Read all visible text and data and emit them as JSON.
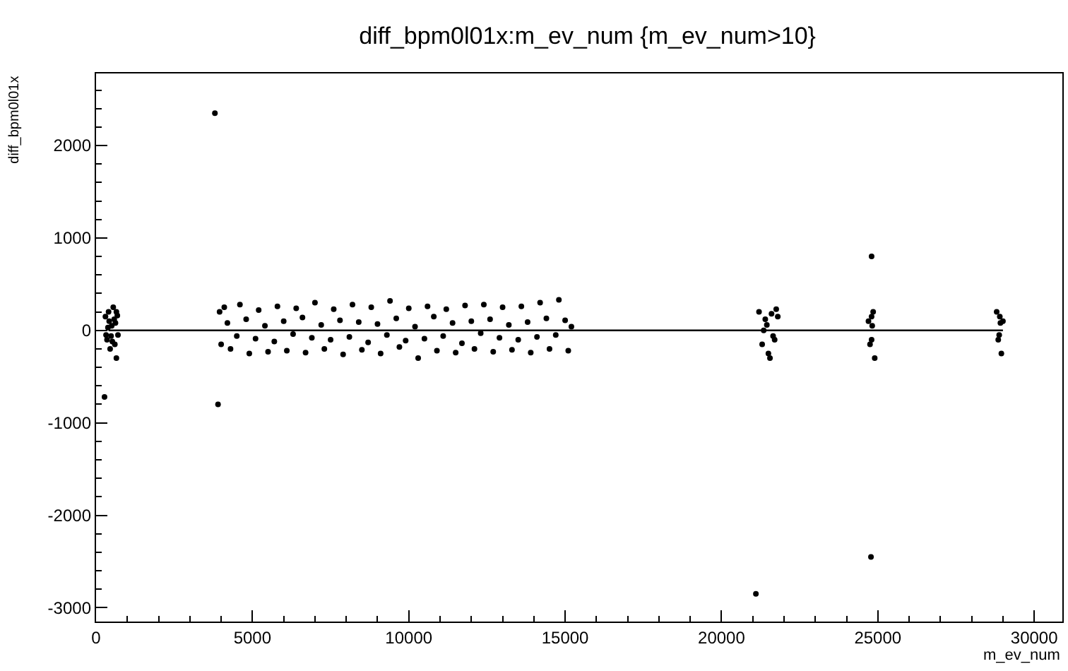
{
  "chart_data": {
    "type": "scatter",
    "title": "diff_bpm0l01x:m_ev_num {m_ev_num>10}",
    "xlabel": "m_ev_num",
    "ylabel": "diff_bpm0l01x",
    "xlim": [
      0,
      30900
    ],
    "ylim": [
      -3150,
      2780
    ],
    "xticks": [
      0,
      5000,
      10000,
      15000,
      20000,
      25000,
      30000
    ],
    "yticks": [
      -3000,
      -2000,
      -1000,
      0,
      1000,
      2000
    ],
    "series": [
      {
        "type": "line",
        "color": "#000000",
        "x": [
          400,
          29000
        ],
        "values": [
          0,
          0
        ]
      },
      {
        "marker": "circle",
        "color": "#000000",
        "x": [
          300,
          350,
          400,
          450,
          500,
          550,
          600,
          650,
          700,
          320,
          420,
          520,
          620,
          680,
          380,
          480,
          580,
          650,
          270,
          3800,
          3900,
          3950,
          4000,
          4100,
          4300,
          4600,
          4900,
          5200,
          5500,
          5800,
          6100,
          6400,
          6700,
          7000,
          7300,
          7600,
          7900,
          8200,
          8500,
          8800,
          9100,
          9400,
          9700,
          10000,
          10300,
          10600,
          10900,
          11200,
          11500,
          11800,
          12100,
          12400,
          12700,
          13000,
          13300,
          13600,
          13900,
          14200,
          14500,
          14800,
          15100,
          4200,
          4500,
          4800,
          5100,
          5400,
          5700,
          6000,
          6300,
          6600,
          6900,
          7200,
          7500,
          7800,
          8100,
          8400,
          8700,
          9000,
          9300,
          9600,
          9900,
          10200,
          10500,
          10800,
          11100,
          11400,
          11700,
          12000,
          12300,
          12600,
          12900,
          13200,
          13500,
          13800,
          14100,
          14400,
          14700,
          15000,
          15200,
          21200,
          21300,
          21400,
          21500,
          21600,
          21700,
          21800,
          21350,
          21550,
          21750,
          21450,
          21650,
          21100,
          24700,
          24750,
          24800,
          24850,
          24900,
          24780,
          24820,
          24800,
          24800,
          28800,
          28850,
          28900,
          28950,
          29000,
          28880,
          28920
        ],
        "values": [
          150,
          -100,
          200,
          -200,
          50,
          250,
          -150,
          200,
          -50,
          -50,
          100,
          -120,
          80,
          160,
          30,
          -60,
          120,
          -300,
          -720,
          2350,
          -800,
          200,
          -150,
          250,
          -200,
          280,
          -250,
          220,
          -230,
          260,
          -220,
          240,
          -240,
          300,
          -200,
          230,
          -260,
          280,
          -210,
          250,
          -250,
          320,
          -180,
          240,
          -300,
          260,
          -220,
          230,
          -240,
          270,
          -200,
          280,
          -230,
          250,
          -210,
          260,
          -240,
          300,
          -200,
          330,
          -220,
          80,
          -60,
          120,
          -90,
          50,
          -120,
          100,
          -40,
          140,
          -80,
          60,
          -100,
          110,
          -70,
          90,
          -130,
          70,
          -50,
          130,
          -110,
          40,
          -90,
          150,
          -60,
          80,
          -140,
          100,
          -30,
          120,
          -80,
          60,
          -100,
          90,
          -70,
          130,
          -50,
          110,
          40,
          200,
          -150,
          120,
          -250,
          180,
          -100,
          150,
          0,
          -300,
          230,
          60,
          -60,
          -2850,
          100,
          -150,
          800,
          200,
          -300,
          -2450,
          50,
          -100,
          150,
          200,
          -100,
          150,
          -250,
          100,
          -50,
          80
        ]
      }
    ]
  }
}
